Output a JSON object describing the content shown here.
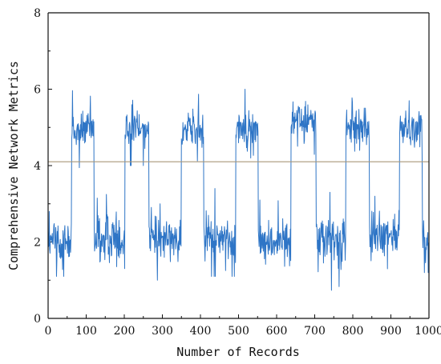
{
  "colors": {
    "series": "#2E75C6",
    "threshold": "#A89779",
    "axis": "#111111",
    "background": "#FFFFFF"
  },
  "chart_data": {
    "type": "line",
    "title": "",
    "xlabel": "Number of Records",
    "ylabel": "Comprehensive Network Metrics",
    "xlim": [
      0,
      1000
    ],
    "ylim": [
      0,
      8
    ],
    "x_ticks": [
      0,
      100,
      200,
      300,
      400,
      500,
      600,
      700,
      800,
      900,
      1000
    ],
    "y_ticks": [
      0,
      2,
      4,
      6,
      8
    ],
    "grid": false,
    "legend": "none",
    "threshold": {
      "y": 4.1,
      "orientation": "horizontal",
      "color": "#A89779"
    },
    "series": [
      {
        "color": "#2E75C6",
        "x_start": 0,
        "x_step": 1,
        "segments": [
          {
            "x_from": 0,
            "x_to": 61,
            "mean": 2.0,
            "spread": 0.55,
            "spike_min": 1.1,
            "spike_max": 2.8
          },
          {
            "x_from": 62,
            "x_to": 120,
            "mean": 4.9,
            "spread": 0.45,
            "spike_min": 3.5,
            "spike_max": 6.0
          },
          {
            "x_from": 121,
            "x_to": 201,
            "mean": 2.1,
            "spread": 0.55,
            "spike_min": 0.8,
            "spike_max": 3.3
          },
          {
            "x_from": 202,
            "x_to": 264,
            "mean": 5.0,
            "spread": 0.45,
            "spike_min": 4.0,
            "spike_max": 6.4
          },
          {
            "x_from": 265,
            "x_to": 349,
            "mean": 2.1,
            "spread": 0.5,
            "spike_min": 1.0,
            "spike_max": 3.0
          },
          {
            "x_from": 350,
            "x_to": 408,
            "mean": 4.9,
            "spread": 0.45,
            "spike_min": 3.9,
            "spike_max": 6.3
          },
          {
            "x_from": 409,
            "x_to": 492,
            "mean": 2.1,
            "spread": 0.5,
            "spike_min": 1.1,
            "spike_max": 3.4
          },
          {
            "x_from": 493,
            "x_to": 551,
            "mean": 5.0,
            "spread": 0.45,
            "spike_min": 4.2,
            "spike_max": 6.0
          },
          {
            "x_from": 552,
            "x_to": 637,
            "mean": 2.0,
            "spread": 0.55,
            "spike_min": 0.6,
            "spike_max": 3.1
          },
          {
            "x_from": 638,
            "x_to": 703,
            "mean": 5.2,
            "spread": 0.45,
            "spike_min": 4.2,
            "spike_max": 6.8
          },
          {
            "x_from": 704,
            "x_to": 781,
            "mean": 2.1,
            "spread": 0.55,
            "spike_min": 0.6,
            "spike_max": 3.3
          },
          {
            "x_from": 782,
            "x_to": 843,
            "mean": 5.0,
            "spread": 0.45,
            "spike_min": 4.0,
            "spike_max": 6.4
          },
          {
            "x_from": 844,
            "x_to": 922,
            "mean": 2.1,
            "spread": 0.55,
            "spike_min": 0.6,
            "spike_max": 3.2
          },
          {
            "x_from": 923,
            "x_to": 982,
            "mean": 5.0,
            "spread": 0.45,
            "spike_min": 3.9,
            "spike_max": 5.9
          },
          {
            "x_from": 983,
            "x_to": 1000,
            "mean": 2.0,
            "spread": 0.45,
            "spike_min": 1.2,
            "spike_max": 2.8
          }
        ]
      }
    ]
  }
}
